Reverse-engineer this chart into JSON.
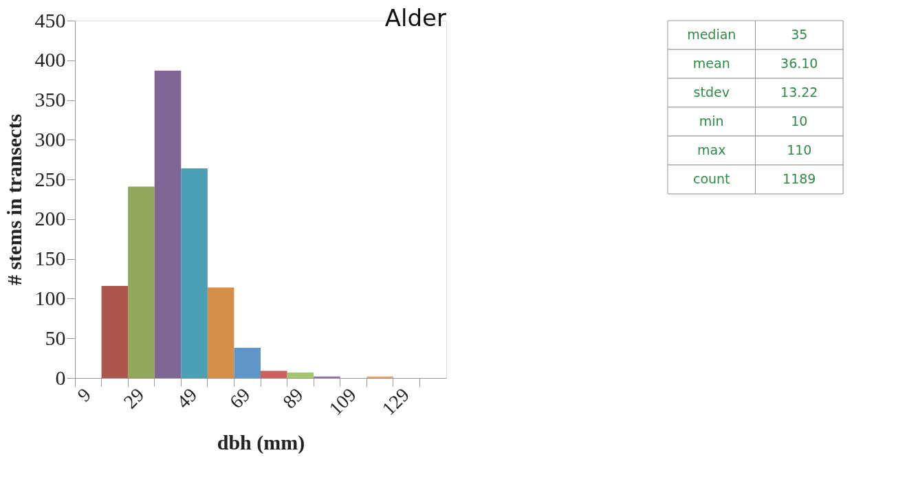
{
  "chart_data": {
    "type": "bar",
    "title": "Alder",
    "xlabel": "dbh (mm)",
    "ylabel": "# stems in transects",
    "categories": [
      "9",
      null,
      "29",
      null,
      "49",
      null,
      "69",
      null,
      "89",
      null,
      "109",
      null,
      "129",
      null
    ],
    "values": [
      0,
      116,
      241,
      387,
      264,
      114,
      38,
      9,
      7,
      2,
      0,
      2,
      0,
      0
    ],
    "colors": [
      "#5f95c9",
      "#ae554e",
      "#91a85a",
      "#7e6697",
      "#4b9fb5",
      "#d68f4a",
      "#5f95c9",
      "#cc615c",
      "#a2c46a",
      "#8b71a8",
      "#4b9fb5",
      "#e8a35a",
      "#5f95c9",
      "#ae554e"
    ],
    "ylim": [
      0,
      450
    ],
    "yticks": [
      0,
      50,
      100,
      150,
      200,
      250,
      300,
      350,
      400,
      450
    ],
    "grid": false,
    "legend": false,
    "annotations": [
      "median",
      "35",
      "mean",
      "36.10",
      "stdev",
      "13.22",
      "min",
      "10",
      "max",
      "110",
      "count",
      "1189"
    ]
  }
}
